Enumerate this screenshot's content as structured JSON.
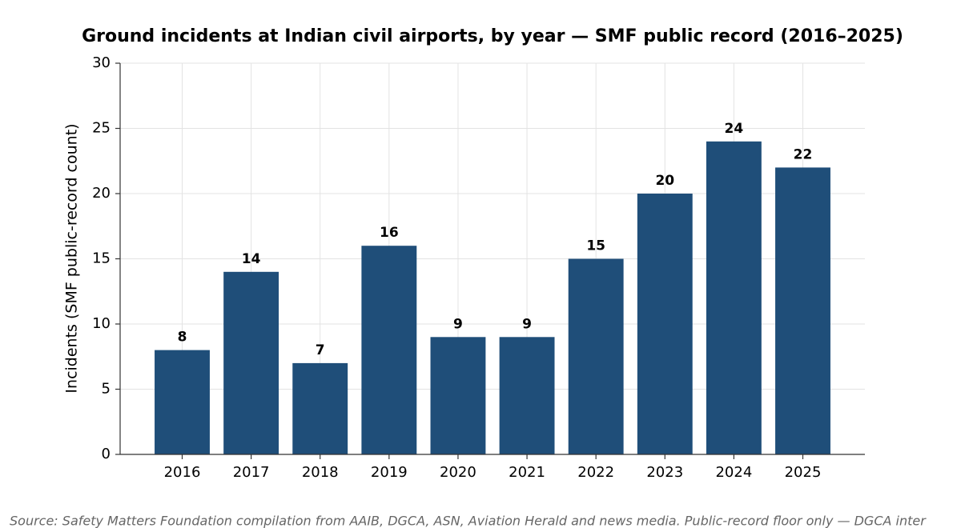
{
  "chart_data": {
    "type": "bar",
    "title": "Ground incidents at Indian civil airports, by year — SMF public record (2016–2025)",
    "y_label": "Incidents (SMF public-record count)",
    "categories": [
      "2016",
      "2017",
      "2018",
      "2019",
      "2020",
      "2021",
      "2022",
      "2023",
      "2024",
      "2025"
    ],
    "values": [
      8,
      14,
      7,
      16,
      9,
      9,
      15,
      20,
      24,
      22
    ],
    "color": "#1f4e79",
    "ylim": [
      0,
      30
    ],
    "yticks": [
      0,
      5,
      10,
      15,
      20,
      25,
      30
    ],
    "grid": true,
    "source": "Source: Safety Matters Foundation compilation from AAIB, DGCA, ASN, Aviation Herald and news media. Public-record floor only — DGCA inter"
  }
}
